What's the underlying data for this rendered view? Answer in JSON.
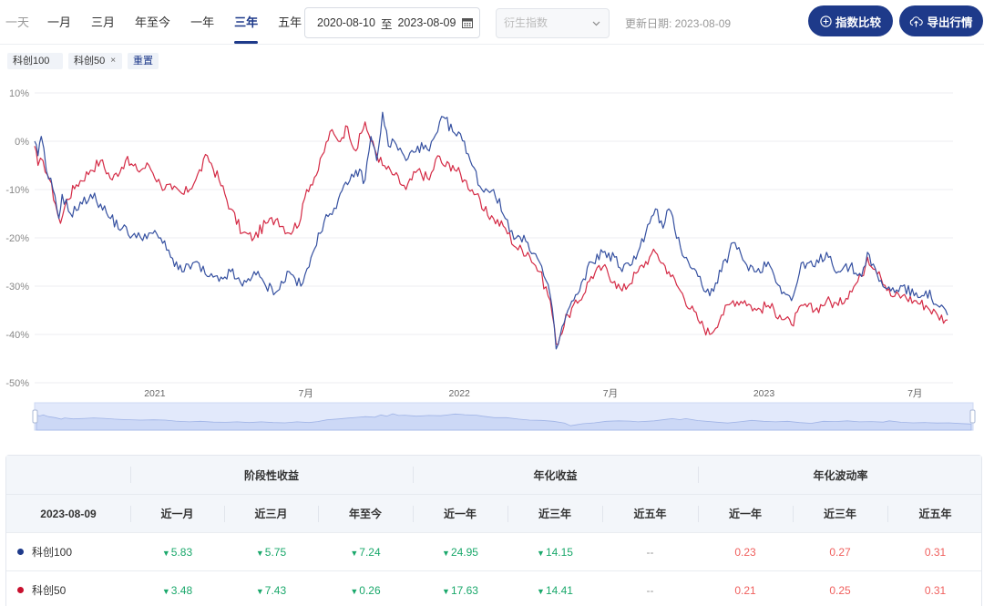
{
  "toolbar": {
    "ranges": [
      "一天",
      "一月",
      "三月",
      "年至今",
      "一年",
      "三年",
      "五年"
    ],
    "active_range": "三年",
    "date_start": "2020-08-10",
    "date_sep": "至",
    "date_end": "2023-08-09",
    "derive_placeholder": "衍生指数",
    "updated_label": "更新日期: 2023-08-09",
    "compare_label": "指数比较",
    "export_label": "导出行情"
  },
  "chips": {
    "first": "科创100",
    "second": "科创50",
    "second_close": "×",
    "reset": "重置"
  },
  "colors": {
    "accent": "#1e3a8a",
    "series_1": "#3550a0",
    "series_2": "#d42a45",
    "down": "#1aa86b",
    "up": "#f0605e"
  },
  "chart_data": {
    "type": "line",
    "y_tick_labels": [
      "10%",
      "0%",
      "-10%",
      "-20%",
      "-30%",
      "-40%",
      "-50%"
    ],
    "y_ticks": [
      10,
      0,
      -10,
      -20,
      -30,
      -40,
      -50
    ],
    "ylim": [
      -50,
      10
    ],
    "x_tick_labels": [
      "2021",
      "7月",
      "2022",
      "7月",
      "2023",
      "7月"
    ],
    "x_ticks": [
      "2021-01-01",
      "2021-07-01",
      "2022-01-01",
      "2022-07-01",
      "2023-01-01",
      "2023-07-01"
    ],
    "xlim": [
      "2020-08-10",
      "2023-08-09"
    ],
    "grid": "horizontal",
    "series": [
      {
        "name": "科创100",
        "color": "#3550a0",
        "points": [
          [
            "2020-08-10",
            0
          ],
          [
            "2020-08-14",
            -3
          ],
          [
            "2020-08-18",
            1
          ],
          [
            "2020-08-24",
            -6
          ],
          [
            "2020-09-01",
            -10
          ],
          [
            "2020-09-08",
            -16
          ],
          [
            "2020-09-12",
            -11
          ],
          [
            "2020-09-22",
            -15
          ],
          [
            "2020-10-06",
            -13
          ],
          [
            "2020-10-16",
            -11
          ],
          [
            "2020-10-28",
            -13
          ],
          [
            "2020-11-09",
            -16
          ],
          [
            "2020-11-23",
            -18
          ],
          [
            "2020-12-10",
            -20
          ],
          [
            "2020-12-25",
            -19
          ],
          [
            "2021-01-08",
            -20
          ],
          [
            "2021-01-20",
            -24
          ],
          [
            "2021-02-05",
            -27
          ],
          [
            "2021-02-18",
            -25
          ],
          [
            "2021-03-05",
            -28
          ],
          [
            "2021-03-19",
            -29
          ],
          [
            "2021-04-02",
            -27
          ],
          [
            "2021-04-16",
            -30
          ],
          [
            "2021-04-30",
            -27
          ],
          [
            "2021-05-14",
            -30
          ],
          [
            "2021-05-28",
            -31
          ],
          [
            "2021-06-11",
            -27
          ],
          [
            "2021-06-25",
            -30
          ],
          [
            "2021-07-05",
            -26
          ],
          [
            "2021-07-16",
            -19
          ],
          [
            "2021-07-30",
            -15
          ],
          [
            "2021-08-09",
            -12
          ],
          [
            "2021-08-20",
            -9
          ],
          [
            "2021-08-30",
            -6
          ],
          [
            "2021-09-10",
            -8
          ],
          [
            "2021-09-17",
            1
          ],
          [
            "2021-09-24",
            -4
          ],
          [
            "2021-10-01",
            6
          ],
          [
            "2021-10-08",
            -1
          ],
          [
            "2021-10-15",
            0
          ],
          [
            "2021-10-29",
            -4
          ],
          [
            "2021-11-12",
            -1
          ],
          [
            "2021-11-26",
            -2
          ],
          [
            "2021-12-06",
            2
          ],
          [
            "2021-12-13",
            5
          ],
          [
            "2021-12-24",
            2
          ],
          [
            "2022-01-07",
            0
          ],
          [
            "2022-01-14",
            -4
          ],
          [
            "2022-01-28",
            -10
          ],
          [
            "2022-02-11",
            -10
          ],
          [
            "2022-02-25",
            -16
          ],
          [
            "2022-03-10",
            -20
          ],
          [
            "2022-03-24",
            -21
          ],
          [
            "2022-04-07",
            -25
          ],
          [
            "2022-04-20",
            -32
          ],
          [
            "2022-04-27",
            -43
          ],
          [
            "2022-05-11",
            -35
          ],
          [
            "2022-05-25",
            -31
          ],
          [
            "2022-06-08",
            -25
          ],
          [
            "2022-06-22",
            -23
          ],
          [
            "2022-07-06",
            -24
          ],
          [
            "2022-07-15",
            -27
          ],
          [
            "2022-08-03",
            -23
          ],
          [
            "2022-08-17",
            -17
          ],
          [
            "2022-08-24",
            -14
          ],
          [
            "2022-09-02",
            -18
          ],
          [
            "2022-09-09",
            -14
          ],
          [
            "2022-09-23",
            -22
          ],
          [
            "2022-10-14",
            -28
          ],
          [
            "2022-10-28",
            -32
          ],
          [
            "2022-11-11",
            -27
          ],
          [
            "2022-11-25",
            -21
          ],
          [
            "2022-12-09",
            -25
          ],
          [
            "2022-12-23",
            -27
          ],
          [
            "2023-01-06",
            -25
          ],
          [
            "2023-01-20",
            -30
          ],
          [
            "2023-02-03",
            -33
          ],
          [
            "2023-02-17",
            -25
          ],
          [
            "2023-03-03",
            -26
          ],
          [
            "2023-03-17",
            -23
          ],
          [
            "2023-03-31",
            -27
          ],
          [
            "2023-04-14",
            -26
          ],
          [
            "2023-04-28",
            -28
          ],
          [
            "2023-05-05",
            -23
          ],
          [
            "2023-05-19",
            -29
          ],
          [
            "2023-06-02",
            -31
          ],
          [
            "2023-06-16",
            -30
          ],
          [
            "2023-06-30",
            -32
          ],
          [
            "2023-07-14",
            -31
          ],
          [
            "2023-07-28",
            -34
          ],
          [
            "2023-08-09",
            -36
          ]
        ]
      },
      {
        "name": "科创50",
        "color": "#d42a45",
        "points": [
          [
            "2020-08-10",
            -1
          ],
          [
            "2020-08-14",
            -5
          ],
          [
            "2020-08-20",
            -4
          ],
          [
            "2020-08-28",
            -8
          ],
          [
            "2020-09-04",
            -13
          ],
          [
            "2020-09-10",
            -17
          ],
          [
            "2020-09-18",
            -12
          ],
          [
            "2020-09-29",
            -9
          ],
          [
            "2020-10-16",
            -6
          ],
          [
            "2020-10-28",
            -4
          ],
          [
            "2020-11-11",
            -8
          ],
          [
            "2020-11-27",
            -4
          ],
          [
            "2020-12-11",
            -6
          ],
          [
            "2020-12-25",
            -5
          ],
          [
            "2021-01-08",
            -9
          ],
          [
            "2021-01-22",
            -10
          ],
          [
            "2021-02-05",
            -11
          ],
          [
            "2021-02-19",
            -8
          ],
          [
            "2021-03-05",
            -3
          ],
          [
            "2021-03-19",
            -8
          ],
          [
            "2021-04-02",
            -14
          ],
          [
            "2021-04-16",
            -19
          ],
          [
            "2021-04-30",
            -20
          ],
          [
            "2021-05-14",
            -17
          ],
          [
            "2021-05-28",
            -16
          ],
          [
            "2021-06-11",
            -19
          ],
          [
            "2021-06-25",
            -16
          ],
          [
            "2021-07-02",
            -10
          ],
          [
            "2021-07-16",
            -6
          ],
          [
            "2021-07-30",
            2
          ],
          [
            "2021-08-09",
            0
          ],
          [
            "2021-08-20",
            3
          ],
          [
            "2021-08-30",
            -2
          ],
          [
            "2021-09-10",
            4
          ],
          [
            "2021-09-17",
            0
          ],
          [
            "2021-10-01",
            -5
          ],
          [
            "2021-10-15",
            -7
          ],
          [
            "2021-10-29",
            -10
          ],
          [
            "2021-11-12",
            -6
          ],
          [
            "2021-11-26",
            -8
          ],
          [
            "2021-12-06",
            -3
          ],
          [
            "2021-12-13",
            -5
          ],
          [
            "2021-12-24",
            -5
          ],
          [
            "2022-01-07",
            -8
          ],
          [
            "2022-01-21",
            -11
          ],
          [
            "2022-01-28",
            -14
          ],
          [
            "2022-02-11",
            -16
          ],
          [
            "2022-02-25",
            -18
          ],
          [
            "2022-03-10",
            -22
          ],
          [
            "2022-03-24",
            -23
          ],
          [
            "2022-04-07",
            -27
          ],
          [
            "2022-04-20",
            -33
          ],
          [
            "2022-04-27",
            -42
          ],
          [
            "2022-05-11",
            -36
          ],
          [
            "2022-05-25",
            -33
          ],
          [
            "2022-06-08",
            -28
          ],
          [
            "2022-06-22",
            -26
          ],
          [
            "2022-07-06",
            -29
          ],
          [
            "2022-07-15",
            -31
          ],
          [
            "2022-08-03",
            -27
          ],
          [
            "2022-08-17",
            -24
          ],
          [
            "2022-08-24",
            -23
          ],
          [
            "2022-09-09",
            -27
          ],
          [
            "2022-09-23",
            -31
          ],
          [
            "2022-10-14",
            -37
          ],
          [
            "2022-10-28",
            -40
          ],
          [
            "2022-11-11",
            -36
          ],
          [
            "2022-11-25",
            -33
          ],
          [
            "2022-12-09",
            -33
          ],
          [
            "2022-12-23",
            -35
          ],
          [
            "2023-01-06",
            -34
          ],
          [
            "2023-01-20",
            -36
          ],
          [
            "2023-02-03",
            -38
          ],
          [
            "2023-02-17",
            -34
          ],
          [
            "2023-03-03",
            -35
          ],
          [
            "2023-03-17",
            -33
          ],
          [
            "2023-03-31",
            -34
          ],
          [
            "2023-04-14",
            -31
          ],
          [
            "2023-04-28",
            -28
          ],
          [
            "2023-05-05",
            -24
          ],
          [
            "2023-05-19",
            -27
          ],
          [
            "2023-06-02",
            -32
          ],
          [
            "2023-06-16",
            -32
          ],
          [
            "2023-06-30",
            -33
          ],
          [
            "2023-07-14",
            -34
          ],
          [
            "2023-07-28",
            -36
          ],
          [
            "2023-08-09",
            -37
          ]
        ]
      }
    ]
  },
  "table": {
    "group_headers": [
      "阶段性收益",
      "年化收益",
      "年化波动率"
    ],
    "date": "2023-08-09",
    "columns": [
      "近一月",
      "近三月",
      "年至今",
      "近一年",
      "近三年",
      "近五年",
      "近一年",
      "近三年",
      "近五年"
    ],
    "rows": [
      {
        "name": "科创100",
        "dot_color": "#1e3a8a",
        "values": [
          "5.83",
          "5.75",
          "7.24",
          "24.95",
          "14.15",
          "--",
          "0.23",
          "0.27",
          "0.31"
        ],
        "kinds": [
          "down",
          "down",
          "down",
          "down",
          "down",
          "na",
          "up",
          "up",
          "up"
        ]
      },
      {
        "name": "科创50",
        "dot_color": "#c8102e",
        "values": [
          "3.48",
          "7.43",
          "0.26",
          "17.63",
          "14.41",
          "--",
          "0.21",
          "0.25",
          "0.31"
        ],
        "kinds": [
          "down",
          "down",
          "down",
          "down",
          "down",
          "na",
          "up",
          "up",
          "up"
        ]
      }
    ]
  }
}
